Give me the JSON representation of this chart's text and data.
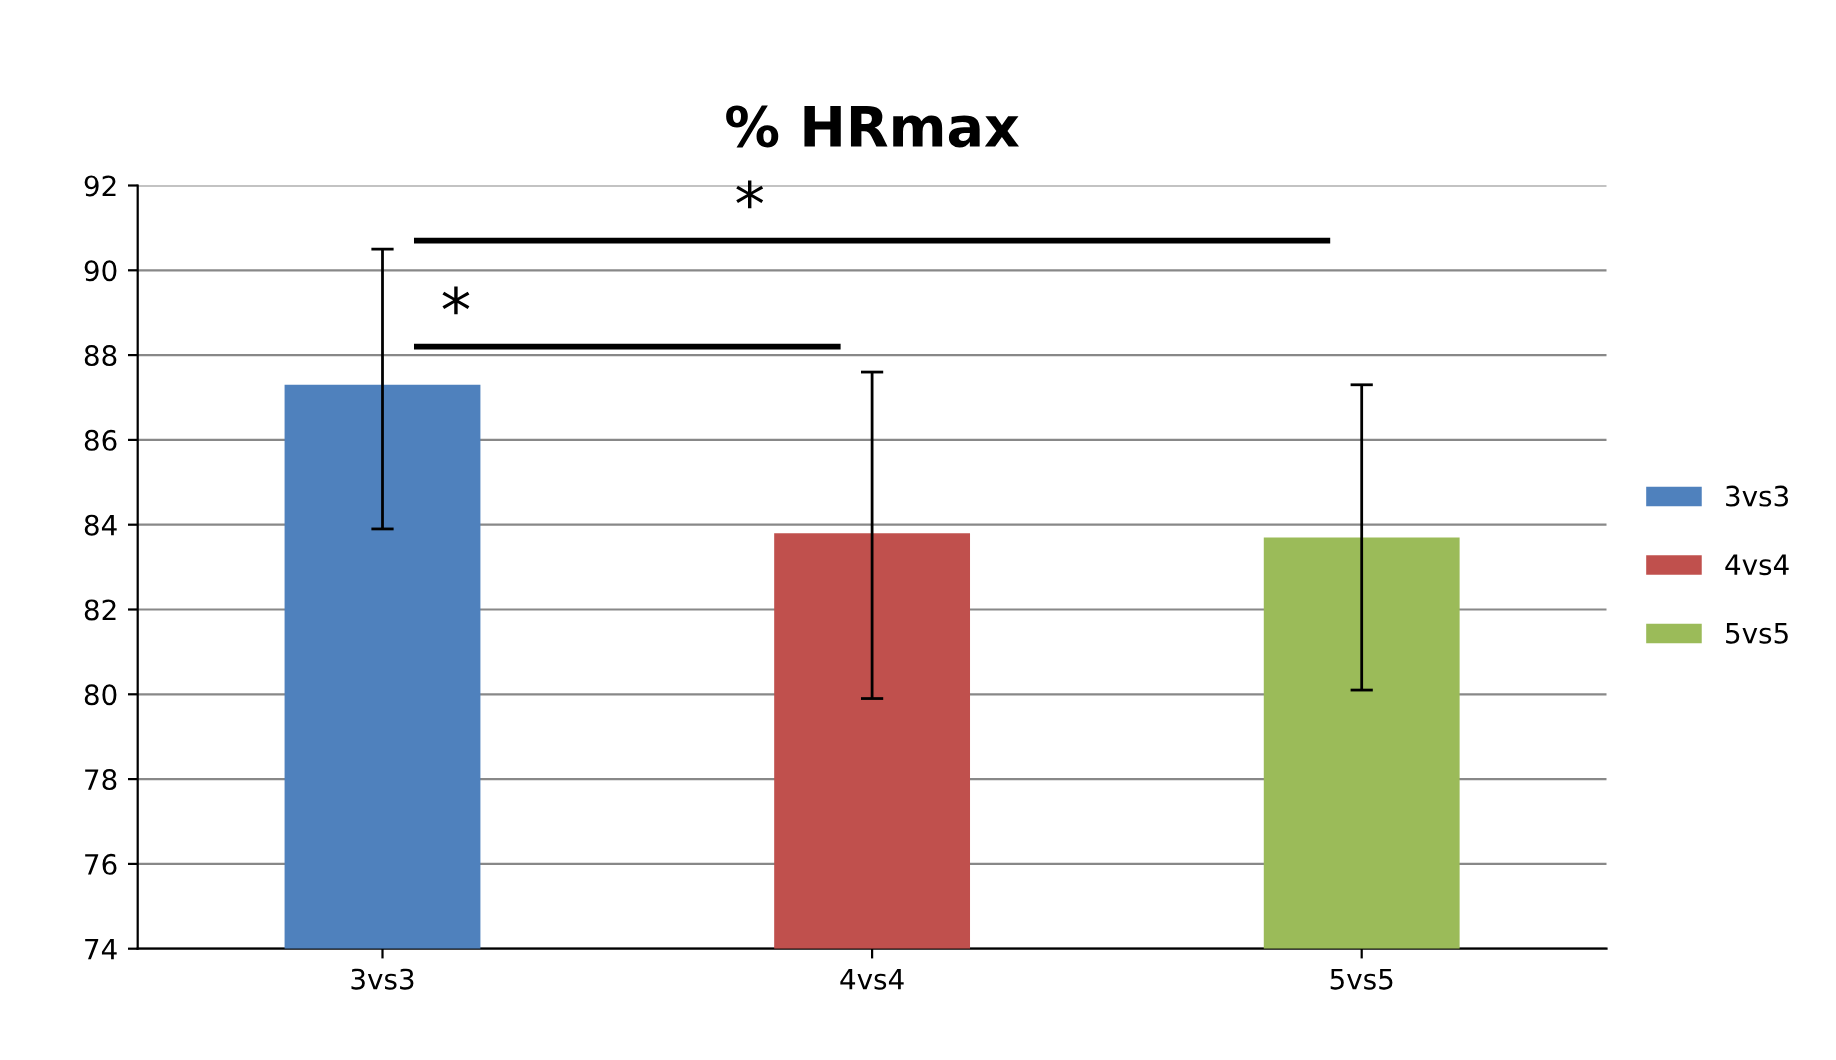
{
  "chart_data": {
    "type": "bar",
    "title": "% HRmax",
    "categories": [
      "3vs3",
      "4vs4",
      "5vs5"
    ],
    "series": [
      {
        "name": "3vs3",
        "color": "#4f81bd",
        "values": [
          87.3,
          null,
          null
        ],
        "errors": [
          [
            83.9,
            90.5
          ],
          null,
          null
        ]
      },
      {
        "name": "4vs4",
        "color": "#c0504d",
        "values": [
          null,
          83.8,
          null
        ],
        "errors": [
          null,
          [
            79.9,
            87.6
          ],
          null
        ]
      },
      {
        "name": "5vs5",
        "color": "#9bbb59",
        "values": [
          null,
          null,
          83.7
        ],
        "errors": [
          null,
          null,
          [
            80.1,
            87.3
          ]
        ]
      }
    ],
    "ylim": [
      74,
      92
    ],
    "yticks": [
      74,
      76,
      78,
      80,
      82,
      84,
      86,
      88,
      90,
      92
    ],
    "grid": "y",
    "legend": "right",
    "annotations": [
      "*",
      "*"
    ]
  }
}
